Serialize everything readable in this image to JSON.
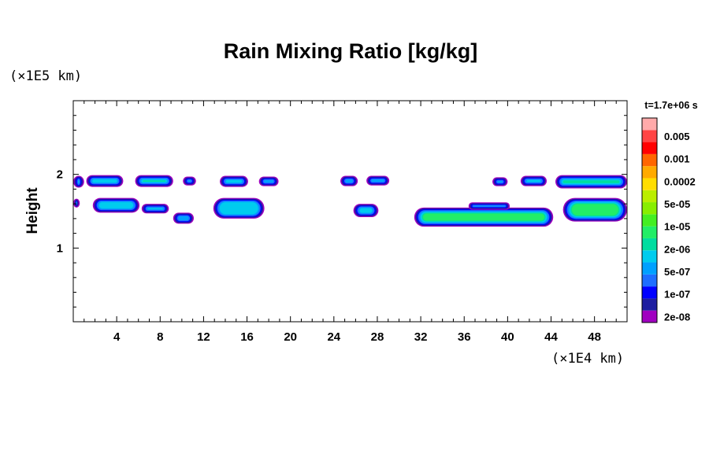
{
  "chart_data": {
    "type": "heatmap",
    "title": "Rain Mixing Ratio [kg/kg]",
    "time_label": "t=1.7e+06 s",
    "ylabel": "Height",
    "y_unit": "(×1E5 km)",
    "x_unit": "(×1E4 km)",
    "xlim": [
      0,
      51
    ],
    "ylim": [
      0,
      3
    ],
    "x_ticks": [
      "4",
      "8",
      "12",
      "16",
      "20",
      "24",
      "28",
      "32",
      "36",
      "40",
      "44",
      "48"
    ],
    "y_ticks": [
      "1",
      "2"
    ],
    "colorbar": {
      "labels": [
        "0.005",
        "0.001",
        "0.0002",
        "5e-05",
        "1e-05",
        "2e-06",
        "5e-07",
        "1e-07",
        "2e-08"
      ],
      "colors": [
        "#a000c0",
        "#1e1ea0",
        "#0000ff",
        "#1e6eff",
        "#00a0ff",
        "#00ccee",
        "#00dda0",
        "#22ee66",
        "#44ee22",
        "#88ee00",
        "#bbee00",
        "#ffdd00",
        "#ffaa00",
        "#ff6600",
        "#ff0000",
        "#ff4444",
        "#ffaaaa"
      ]
    },
    "regions": [
      {
        "x": [
          0,
          1.0
        ],
        "y": [
          1.82,
          1.98
        ],
        "level": 5
      },
      {
        "x": [
          1.2,
          4.6
        ],
        "y": [
          1.83,
          1.99
        ],
        "level": 5
      },
      {
        "x": [
          5.7,
          9.2
        ],
        "y": [
          1.83,
          1.99
        ],
        "level": 6
      },
      {
        "x": [
          10.1,
          11.3
        ],
        "y": [
          1.85,
          1.97
        ],
        "level": 4
      },
      {
        "x": [
          13.5,
          16.1
        ],
        "y": [
          1.83,
          1.98
        ],
        "level": 5
      },
      {
        "x": [
          17.1,
          18.9
        ],
        "y": [
          1.84,
          1.97
        ],
        "level": 4
      },
      {
        "x": [
          0,
          0.6
        ],
        "y": [
          1.55,
          1.67
        ],
        "level": 4
      },
      {
        "x": [
          1.8,
          6.1
        ],
        "y": [
          1.48,
          1.68
        ],
        "level": 5
      },
      {
        "x": [
          6.3,
          8.8
        ],
        "y": [
          1.47,
          1.6
        ],
        "level": 5
      },
      {
        "x": [
          9.2,
          11.1
        ],
        "y": [
          1.33,
          1.48
        ],
        "level": 4
      },
      {
        "x": [
          12.9,
          17.6
        ],
        "y": [
          1.4,
          1.68
        ],
        "level": 5
      },
      {
        "x": [
          24.6,
          26.2
        ],
        "y": [
          1.84,
          1.98
        ],
        "level": 4
      },
      {
        "x": [
          27.0,
          29.1
        ],
        "y": [
          1.85,
          1.98
        ],
        "level": 4
      },
      {
        "x": [
          25.8,
          28.1
        ],
        "y": [
          1.42,
          1.6
        ],
        "level": 5
      },
      {
        "x": [
          31.4,
          44.2
        ],
        "y": [
          1.29,
          1.55
        ],
        "level": 7
      },
      {
        "x": [
          36.4,
          40.2
        ],
        "y": [
          1.52,
          1.62
        ],
        "level": 4
      },
      {
        "x": [
          38.6,
          40.0
        ],
        "y": [
          1.84,
          1.96
        ],
        "level": 4
      },
      {
        "x": [
          41.2,
          43.6
        ],
        "y": [
          1.84,
          1.98
        ],
        "level": 5
      },
      {
        "x": [
          44.4,
          51.0
        ],
        "y": [
          1.81,
          1.99
        ],
        "level": 6
      },
      {
        "x": [
          45.1,
          51.0
        ],
        "y": [
          1.36,
          1.68
        ],
        "level": 7
      }
    ]
  }
}
